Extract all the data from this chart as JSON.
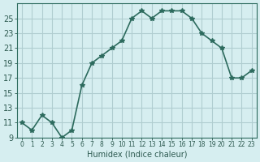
{
  "x": [
    0,
    1,
    2,
    3,
    4,
    5,
    6,
    7,
    8,
    9,
    10,
    11,
    12,
    13,
    14,
    15,
    16,
    17,
    18,
    19,
    20,
    21,
    22,
    23
  ],
  "y": [
    11,
    10,
    12,
    11,
    9,
    10,
    16,
    19,
    20,
    21,
    22,
    25,
    26,
    25,
    26,
    26,
    26,
    25,
    23,
    22,
    21,
    17,
    17,
    18
  ],
  "xlabel": "Humidex (Indice chaleur)",
  "ylabel": "",
  "ylim": [
    9,
    27
  ],
  "yticks": [
    9,
    11,
    13,
    15,
    17,
    19,
    21,
    23,
    25
  ],
  "xlim": [
    -0.5,
    23.5
  ],
  "bg_color": "#d6eef0",
  "grid_color": "#b0cdd0",
  "line_color": "#2d6b5e",
  "marker_color": "#2d6b5e",
  "tick_color": "#2d5a50"
}
